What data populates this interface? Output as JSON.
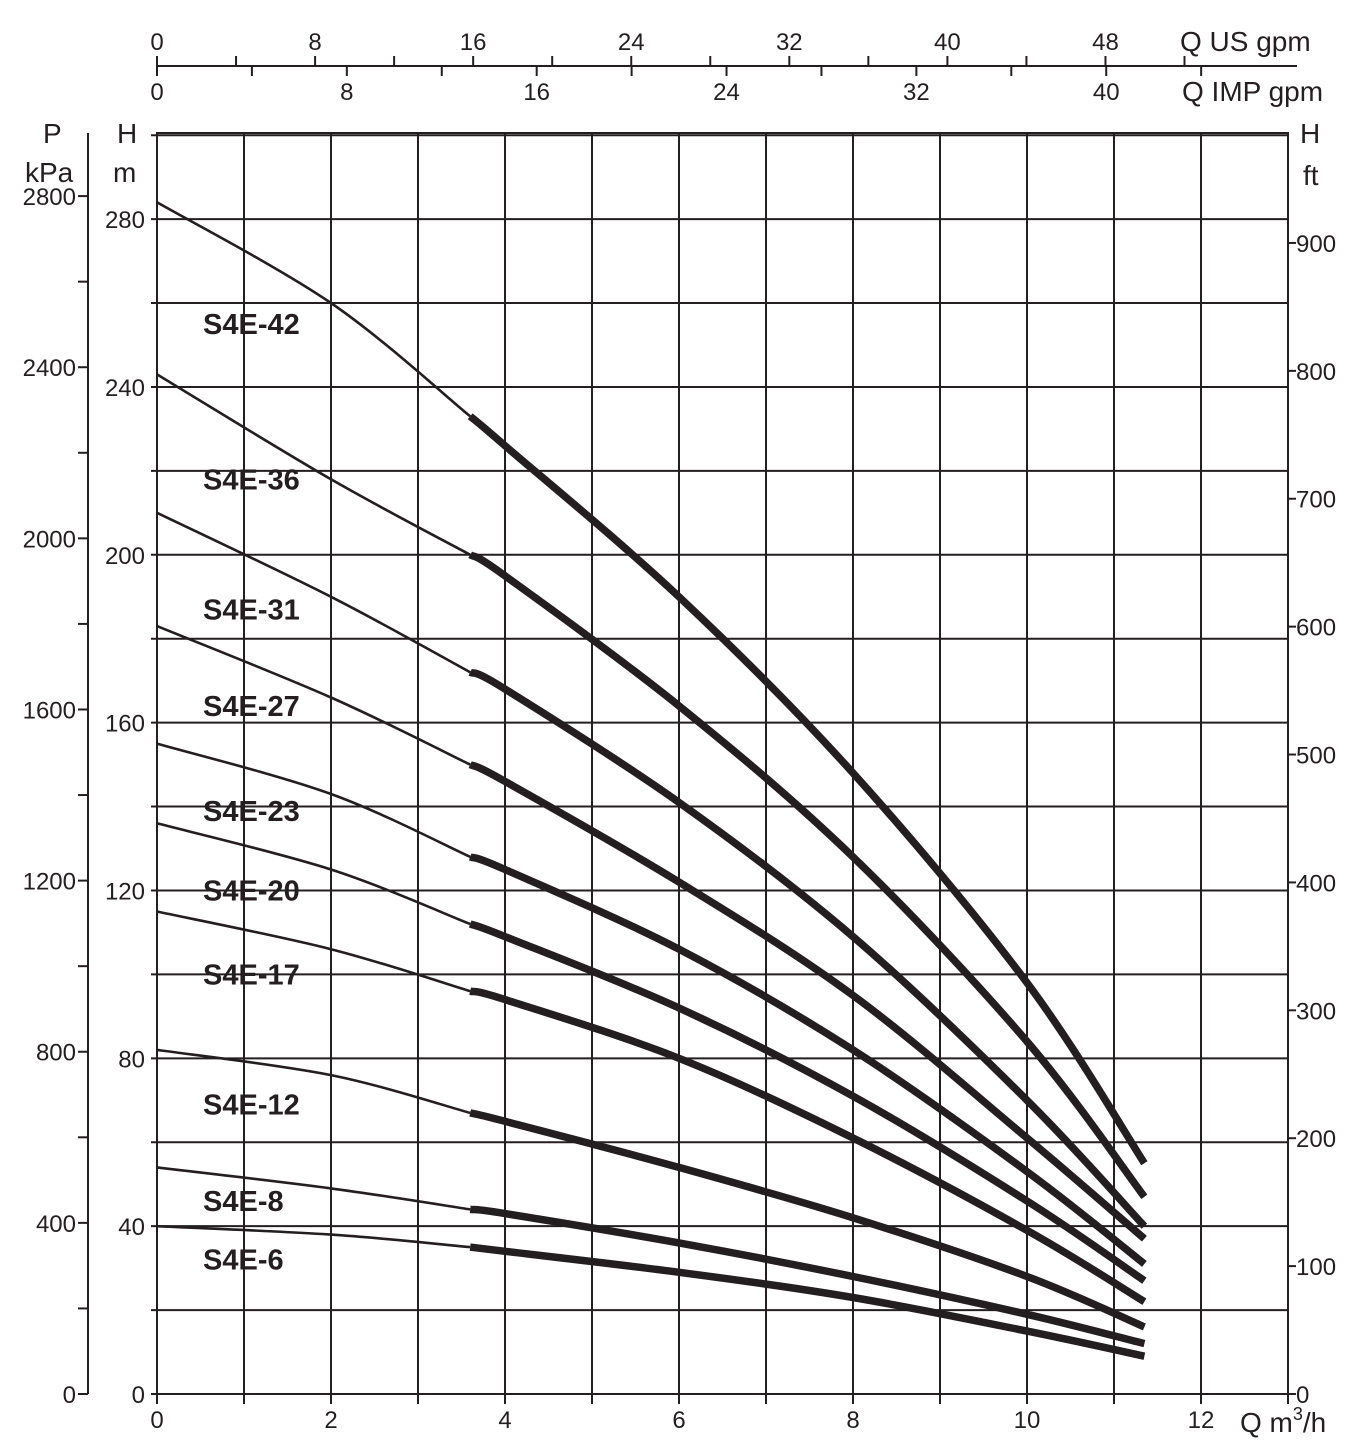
{
  "chart_data": {
    "type": "line",
    "title": "",
    "xlabel": "Q m³/h",
    "ylabel": "H m",
    "x_range": [
      0,
      13
    ],
    "ylim": [
      0,
      300
    ],
    "grid": true,
    "x_ticks": [
      0,
      2,
      4,
      6,
      8,
      10,
      12
    ],
    "x_minor_ticks": [
      1,
      3,
      5,
      7,
      9,
      11,
      13
    ],
    "y_ticks_m": [
      0,
      40,
      80,
      120,
      160,
      200,
      240,
      280
    ],
    "y_ticks_kpa": [
      0,
      400,
      800,
      1200,
      1600,
      2000,
      2400,
      2800
    ],
    "y_ticks_ft": [
      0,
      100,
      200,
      300,
      400,
      500,
      600,
      700,
      800,
      900
    ],
    "top_axis_us_gpm": {
      "label": "Q US gpm",
      "ticks": [
        0,
        8,
        16,
        24,
        32,
        40,
        48
      ]
    },
    "top_axis_imp_gpm": {
      "label": "Q IMP gpm",
      "ticks": [
        0,
        8,
        16,
        24,
        32,
        40
      ]
    },
    "left_axis_p": {
      "label_top": "P",
      "label_unit": "kPa"
    },
    "left_axis_h": {
      "label_top": "H",
      "label_unit": "m"
    },
    "right_axis_h": {
      "label_top": "H",
      "label_unit": "ft"
    },
    "x_unit_label": "Q m",
    "x_unit_sup": "3",
    "x_unit_tail": "/h",
    "operating_range_start_q": 3.6,
    "x": [
      0,
      2,
      3.6,
      4,
      6,
      8,
      10,
      11.35
    ],
    "series": [
      {
        "name": "S4E-42",
        "label_h": 255,
        "values": [
          284,
          260,
          233,
          226,
          190,
          148,
          98,
          55
        ]
      },
      {
        "name": "S4E-36",
        "label_h": 218,
        "values": [
          243,
          218,
          200,
          195,
          164,
          128,
          84,
          47
        ]
      },
      {
        "name": "S4E-31",
        "label_h": 187,
        "values": [
          210,
          190,
          172,
          168,
          141,
          109,
          70,
          40
        ]
      },
      {
        "name": "S4E-27",
        "label_h": 164,
        "values": [
          183,
          166,
          150,
          146,
          122,
          95,
          61,
          37
        ]
      },
      {
        "name": "S4E-23",
        "label_h": 139,
        "values": [
          155,
          143,
          128,
          125,
          106,
          82,
          53,
          31
        ]
      },
      {
        "name": "S4E-20",
        "label_h": 120,
        "values": [
          136,
          125,
          112,
          109,
          92,
          71,
          46,
          27
        ]
      },
      {
        "name": "S4E-17",
        "label_h": 100,
        "values": [
          115,
          106,
          96,
          94,
          80,
          61,
          39,
          22
        ]
      },
      {
        "name": "S4E-12",
        "label_h": 69,
        "values": [
          82,
          76,
          67,
          65,
          54,
          42,
          28,
          16
        ]
      },
      {
        "name": "S4E-8",
        "label_h": 46,
        "values": [
          54,
          49,
          44,
          43,
          36,
          28,
          19,
          12
        ]
      },
      {
        "name": "S4E-6",
        "label_h": 32,
        "values": [
          40,
          38,
          35,
          34,
          29,
          23,
          15,
          9
        ]
      }
    ],
    "colors": {
      "ink": "#231f20",
      "background": "#ffffff"
    }
  }
}
